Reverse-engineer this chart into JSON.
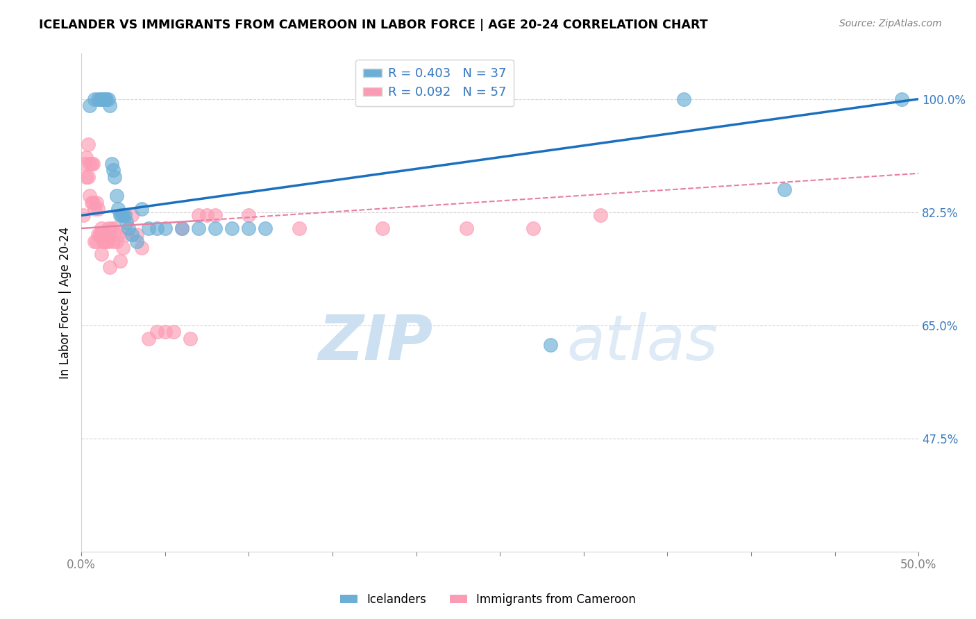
{
  "title": "ICELANDER VS IMMIGRANTS FROM CAMEROON IN LABOR FORCE | AGE 20-24 CORRELATION CHART",
  "source": "Source: ZipAtlas.com",
  "ylabel": "In Labor Force | Age 20-24",
  "yticks": [
    "100.0%",
    "82.5%",
    "65.0%",
    "47.5%"
  ],
  "ytick_vals": [
    1.0,
    0.825,
    0.65,
    0.475
  ],
  "xlim": [
    0.0,
    0.5
  ],
  "ylim": [
    0.3,
    1.07
  ],
  "legend_r1": "R = 0.403   N = 37",
  "legend_r2": "R = 0.092   N = 57",
  "icelander_color": "#6baed6",
  "cameroon_color": "#fc9cb4",
  "icelander_line_color": "#1a6fbe",
  "cameroon_line_color": "#e87ea1",
  "watermark_zip": "ZIP",
  "watermark_atlas": "atlas",
  "icelander_x": [
    0.005,
    0.008,
    0.01,
    0.011,
    0.012,
    0.013,
    0.014,
    0.015,
    0.016,
    0.017,
    0.018,
    0.019,
    0.02,
    0.021,
    0.022,
    0.023,
    0.024,
    0.025,
    0.026,
    0.027,
    0.028,
    0.03,
    0.033,
    0.036,
    0.04,
    0.045,
    0.05,
    0.06,
    0.07,
    0.08,
    0.09,
    0.1,
    0.11,
    0.28,
    0.36,
    0.42,
    0.49
  ],
  "icelander_y": [
    0.99,
    1.0,
    1.0,
    1.0,
    1.0,
    1.0,
    1.0,
    1.0,
    1.0,
    0.99,
    0.9,
    0.89,
    0.88,
    0.85,
    0.83,
    0.82,
    0.82,
    0.82,
    0.82,
    0.81,
    0.8,
    0.79,
    0.78,
    0.83,
    0.8,
    0.8,
    0.8,
    0.8,
    0.8,
    0.8,
    0.8,
    0.8,
    0.8,
    0.62,
    1.0,
    0.86,
    1.0
  ],
  "cameroon_x": [
    0.001,
    0.002,
    0.003,
    0.003,
    0.004,
    0.004,
    0.005,
    0.005,
    0.006,
    0.006,
    0.007,
    0.007,
    0.008,
    0.008,
    0.009,
    0.009,
    0.01,
    0.01,
    0.011,
    0.011,
    0.012,
    0.012,
    0.013,
    0.013,
    0.014,
    0.014,
    0.015,
    0.015,
    0.016,
    0.016,
    0.017,
    0.018,
    0.019,
    0.02,
    0.021,
    0.022,
    0.023,
    0.025,
    0.027,
    0.03,
    0.033,
    0.036,
    0.04,
    0.045,
    0.05,
    0.055,
    0.06,
    0.065,
    0.07,
    0.075,
    0.08,
    0.1,
    0.13,
    0.18,
    0.23,
    0.27,
    0.31
  ],
  "cameroon_y": [
    0.82,
    0.9,
    0.88,
    0.91,
    0.93,
    0.88,
    0.9,
    0.85,
    0.9,
    0.84,
    0.9,
    0.84,
    0.83,
    0.78,
    0.84,
    0.78,
    0.83,
    0.79,
    0.79,
    0.79,
    0.8,
    0.76,
    0.78,
    0.78,
    0.79,
    0.79,
    0.78,
    0.79,
    0.8,
    0.78,
    0.74,
    0.8,
    0.78,
    0.8,
    0.78,
    0.79,
    0.75,
    0.77,
    0.79,
    0.82,
    0.79,
    0.77,
    0.63,
    0.64,
    0.64,
    0.64,
    0.8,
    0.63,
    0.82,
    0.82,
    0.82,
    0.82,
    0.8,
    0.8,
    0.8,
    0.8,
    0.82
  ],
  "ice_line_x0": 0.0,
  "ice_line_y0": 0.82,
  "ice_line_x1": 0.5,
  "ice_line_y1": 1.0,
  "cam_line_x0": 0.0,
  "cam_line_y0": 0.8,
  "cam_line_x1": 0.5,
  "cam_line_y1": 0.885
}
